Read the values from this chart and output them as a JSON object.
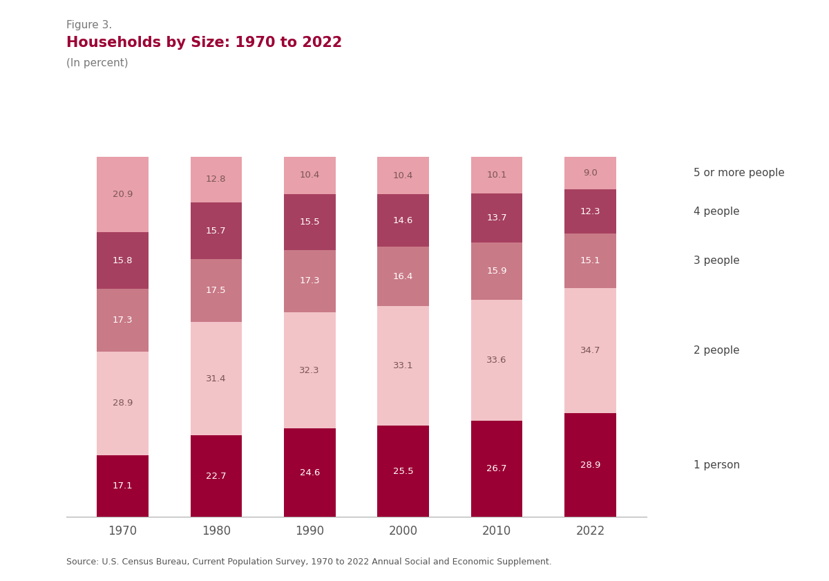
{
  "figure_label": "Figure 3.",
  "title": "Households by Size: 1970 to 2022",
  "subtitle": "(In percent)",
  "source": "Source: U.S. Census Bureau, Current Population Survey, 1970 to 2022 Annual Social and Economic Supplement.",
  "years": [
    "1970",
    "1980",
    "1990",
    "2000",
    "2010",
    "2022"
  ],
  "categories": [
    "1 person",
    "2 people",
    "3 people",
    "4 people",
    "5 or more people"
  ],
  "data": {
    "1 person": [
      17.1,
      22.7,
      24.6,
      25.5,
      26.7,
      28.9
    ],
    "2 people": [
      28.9,
      31.4,
      32.3,
      33.1,
      33.6,
      34.7
    ],
    "3 people": [
      17.3,
      17.5,
      17.3,
      16.4,
      15.9,
      15.1
    ],
    "4 people": [
      15.8,
      15.7,
      15.5,
      14.6,
      13.7,
      12.3
    ],
    "5 or more people": [
      20.9,
      12.8,
      10.4,
      10.4,
      10.1,
      9.0
    ]
  },
  "colors": {
    "1 person": "#9B0034",
    "2 people": "#F2C4C8",
    "3 people": "#C97A87",
    "4 people": "#A64060",
    "5 or more people": "#E8A0AA"
  },
  "text_colors": {
    "1 person": "#FFFFFF",
    "2 people": "#7A5555",
    "3 people": "#FFFFFF",
    "4 people": "#FFFFFF",
    "5 or more people": "#7A5555"
  },
  "bar_width": 0.55,
  "ylim": [
    0,
    100
  ],
  "title_color": "#9B0034",
  "figure_label_color": "#777777",
  "subtitle_color": "#777777",
  "source_color": "#555555",
  "background_color": "#FFFFFF",
  "legend_categories_reversed": [
    "5 or more people",
    "4 people",
    "3 people",
    "2 people",
    "1 person"
  ],
  "legend_line_color": "#555555"
}
